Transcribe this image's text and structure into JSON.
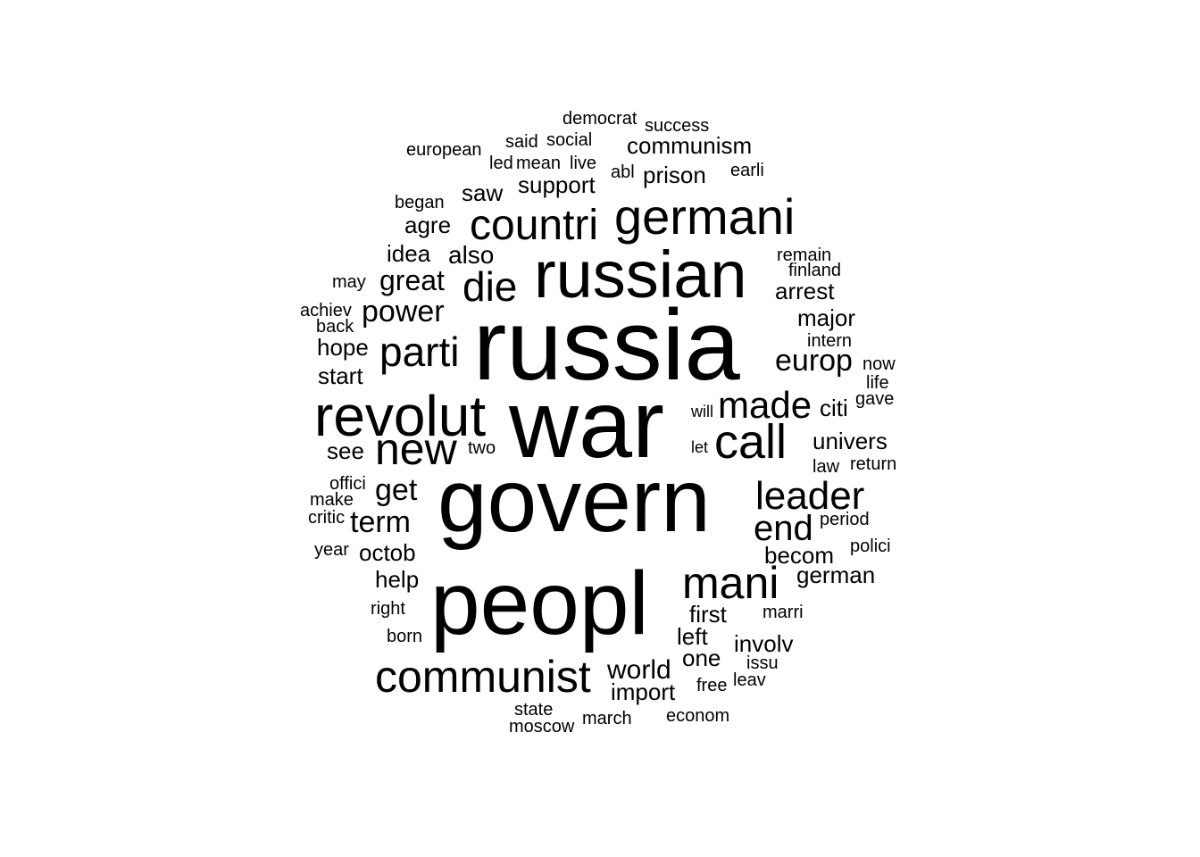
{
  "chart_data": {
    "type": "wordcloud",
    "color": "#000000",
    "words": [
      {
        "text": "russia",
        "weight": 100
      },
      {
        "text": "war",
        "weight": 96
      },
      {
        "text": "govern",
        "weight": 90
      },
      {
        "text": "peopl",
        "weight": 88
      },
      {
        "text": "russian",
        "weight": 66
      },
      {
        "text": "revolut",
        "weight": 58
      },
      {
        "text": "germani",
        "weight": 50
      },
      {
        "text": "countri",
        "weight": 45
      },
      {
        "text": "call",
        "weight": 48
      },
      {
        "text": "communist",
        "weight": 46
      },
      {
        "text": "new",
        "weight": 44
      },
      {
        "text": "mani",
        "weight": 44
      },
      {
        "text": "parti",
        "weight": 42
      },
      {
        "text": "leader",
        "weight": 40
      },
      {
        "text": "die",
        "weight": 40
      },
      {
        "text": "made",
        "weight": 38
      },
      {
        "text": "end",
        "weight": 36
      },
      {
        "text": "get",
        "weight": 32
      },
      {
        "text": "term",
        "weight": 32
      },
      {
        "text": "power",
        "weight": 32
      },
      {
        "text": "europ",
        "weight": 30
      },
      {
        "text": "great",
        "weight": 30
      },
      {
        "text": "world",
        "weight": 28
      },
      {
        "text": "also",
        "weight": 27
      },
      {
        "text": "support",
        "weight": 25
      },
      {
        "text": "import",
        "weight": 25
      },
      {
        "text": "left",
        "weight": 25
      },
      {
        "text": "octob",
        "weight": 25
      },
      {
        "text": "first",
        "weight": 25
      },
      {
        "text": "univers",
        "weight": 25
      },
      {
        "text": "agre",
        "weight": 24
      },
      {
        "text": "idea",
        "weight": 24
      },
      {
        "text": "communism",
        "weight": 24
      },
      {
        "text": "saw",
        "weight": 24
      },
      {
        "text": "prison",
        "weight": 24
      },
      {
        "text": "hope",
        "weight": 24
      },
      {
        "text": "major",
        "weight": 24
      },
      {
        "text": "becom",
        "weight": 24
      },
      {
        "text": "arrest",
        "weight": 24
      },
      {
        "text": "help",
        "weight": 24
      },
      {
        "text": "german",
        "weight": 24
      },
      {
        "text": "start",
        "weight": 24
      },
      {
        "text": "involv",
        "weight": 24
      },
      {
        "text": "one",
        "weight": 24
      },
      {
        "text": "see",
        "weight": 24
      },
      {
        "text": "citi",
        "weight": 24
      },
      {
        "text": "social",
        "weight": 20
      },
      {
        "text": "remain",
        "weight": 20
      },
      {
        "text": "econom",
        "weight": 20
      },
      {
        "text": "state",
        "weight": 20
      },
      {
        "text": "march",
        "weight": 20
      },
      {
        "text": "moscow",
        "weight": 20
      },
      {
        "text": "european",
        "weight": 20
      },
      {
        "text": "democrat",
        "weight": 20
      },
      {
        "text": "success",
        "weight": 20
      },
      {
        "text": "said",
        "weight": 20
      },
      {
        "text": "led",
        "weight": 20
      },
      {
        "text": "mean",
        "weight": 20
      },
      {
        "text": "live",
        "weight": 20
      },
      {
        "text": "abl",
        "weight": 20
      },
      {
        "text": "earli",
        "weight": 20
      },
      {
        "text": "began",
        "weight": 20
      },
      {
        "text": "finland",
        "weight": 20
      },
      {
        "text": "may",
        "weight": 20
      },
      {
        "text": "achiev",
        "weight": 20
      },
      {
        "text": "back",
        "weight": 20
      },
      {
        "text": "intern",
        "weight": 20
      },
      {
        "text": "now",
        "weight": 20
      },
      {
        "text": "life",
        "weight": 20
      },
      {
        "text": "gave",
        "weight": 20
      },
      {
        "text": "will",
        "weight": 18
      },
      {
        "text": "let",
        "weight": 18
      },
      {
        "text": "two",
        "weight": 20
      },
      {
        "text": "law",
        "weight": 20
      },
      {
        "text": "return",
        "weight": 20
      },
      {
        "text": "offici",
        "weight": 20
      },
      {
        "text": "make",
        "weight": 20
      },
      {
        "text": "critic",
        "weight": 20
      },
      {
        "text": "period",
        "weight": 20
      },
      {
        "text": "year",
        "weight": 20
      },
      {
        "text": "polici",
        "weight": 20
      },
      {
        "text": "right",
        "weight": 20
      },
      {
        "text": "marri",
        "weight": 20
      },
      {
        "text": "born",
        "weight": 20
      },
      {
        "text": "issu",
        "weight": 20
      },
      {
        "text": "free",
        "weight": 20
      },
      {
        "text": "leav",
        "weight": 20
      }
    ]
  }
}
